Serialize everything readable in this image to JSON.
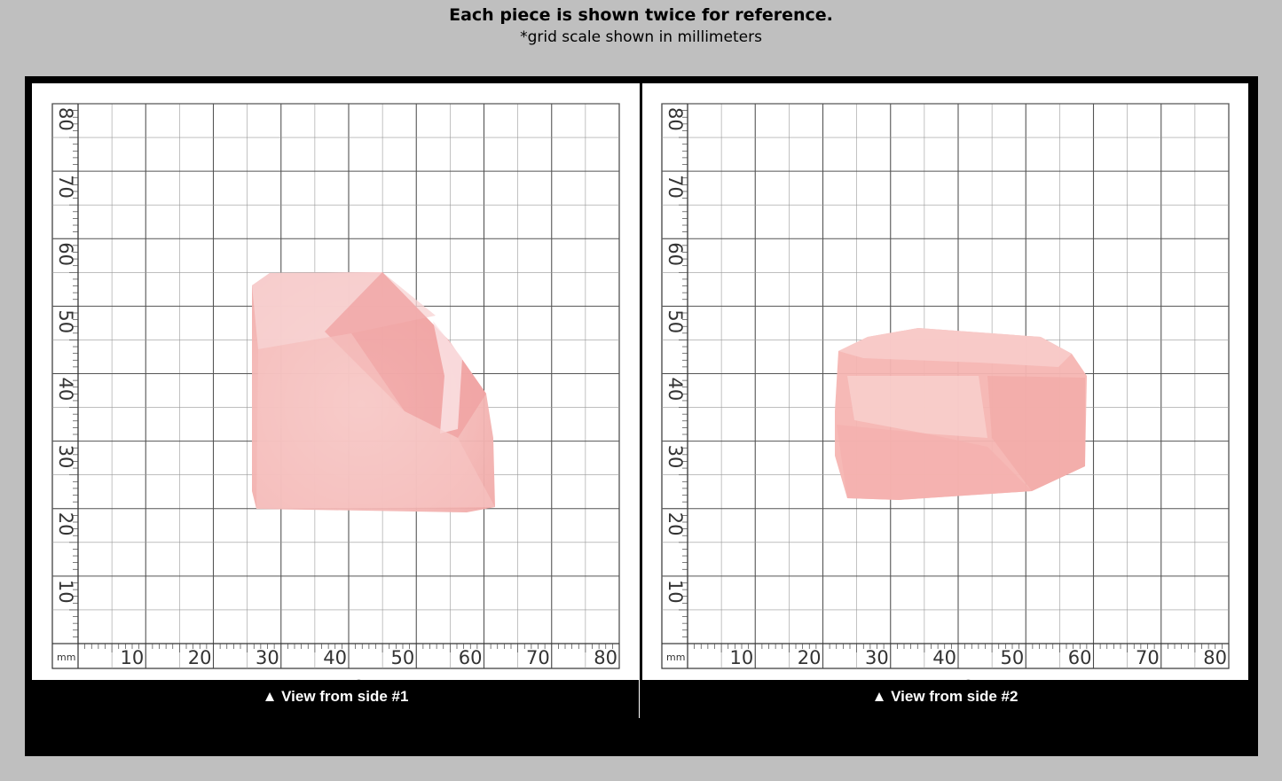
{
  "header": {
    "title": "Each piece is shown twice for reference.",
    "subtitle": "*grid scale shown in millimeters"
  },
  "grid": {
    "unit": "mm",
    "x_ticks": [
      "10",
      "20",
      "30",
      "40",
      "50",
      "60",
      "70",
      "80"
    ],
    "y_ticks": [
      "10",
      "20",
      "30",
      "40",
      "50",
      "60",
      "70",
      "80"
    ]
  },
  "panels": [
    {
      "id": "NAN1921",
      "caption": "▲ View from side #1",
      "stone_color": "#f4b8b6"
    },
    {
      "id": "NAN1921",
      "caption": "▲ View from side #2",
      "stone_color": "#f7b9b6"
    }
  ]
}
